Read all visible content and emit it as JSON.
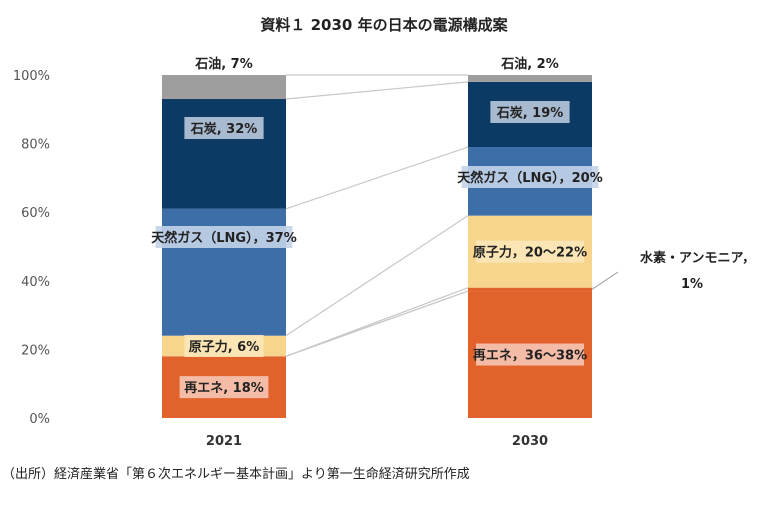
{
  "chart_data": {
    "type": "bar",
    "stacked": true,
    "title": "資料１ 2030 年の日本の電源構成案",
    "categories": [
      "2021",
      "2030"
    ],
    "ylim": [
      0,
      100
    ],
    "yticks": [
      "0%",
      "20%",
      "40%",
      "60%",
      "80%",
      "100%"
    ],
    "grid": false,
    "series": [
      {
        "name": "再エネ",
        "values": [
          18,
          37
        ],
        "color": "#e2622c",
        "labels": [
          "再エネ, 18%",
          "再エネ，36〜38%"
        ]
      },
      {
        "name": "水素・アンモニア",
        "values": [
          0,
          1
        ],
        "color": "#e2622c",
        "labels": [
          "",
          ""
        ]
      },
      {
        "name": "原子力",
        "values": [
          6,
          21
        ],
        "color": "#f7d58c",
        "labels": [
          "原子力, 6%",
          "原子力，20〜22%"
        ]
      },
      {
        "name": "天然ガス（LNG）",
        "values": [
          37,
          20
        ],
        "color": "#3d6ea8",
        "labels": [
          "天然ガス（LNG），37%",
          "天然ガス（LNG），20%"
        ]
      },
      {
        "name": "石炭",
        "values": [
          32,
          19
        ],
        "color": "#0b3b64",
        "labels": [
          "石炭, 32%",
          "石炭, 19%"
        ]
      },
      {
        "name": "石油",
        "values": [
          7,
          2
        ],
        "color": "#9e9e9e",
        "labels": [
          "石油, 7%",
          "石油, 2%"
        ]
      }
    ],
    "callout": {
      "line1": "水素・アンモニア，",
      "line2": "1%"
    }
  },
  "source_note": "（出所）経済産業省「第６次エネルギー基本計画」より第一生命経済研究所作成"
}
